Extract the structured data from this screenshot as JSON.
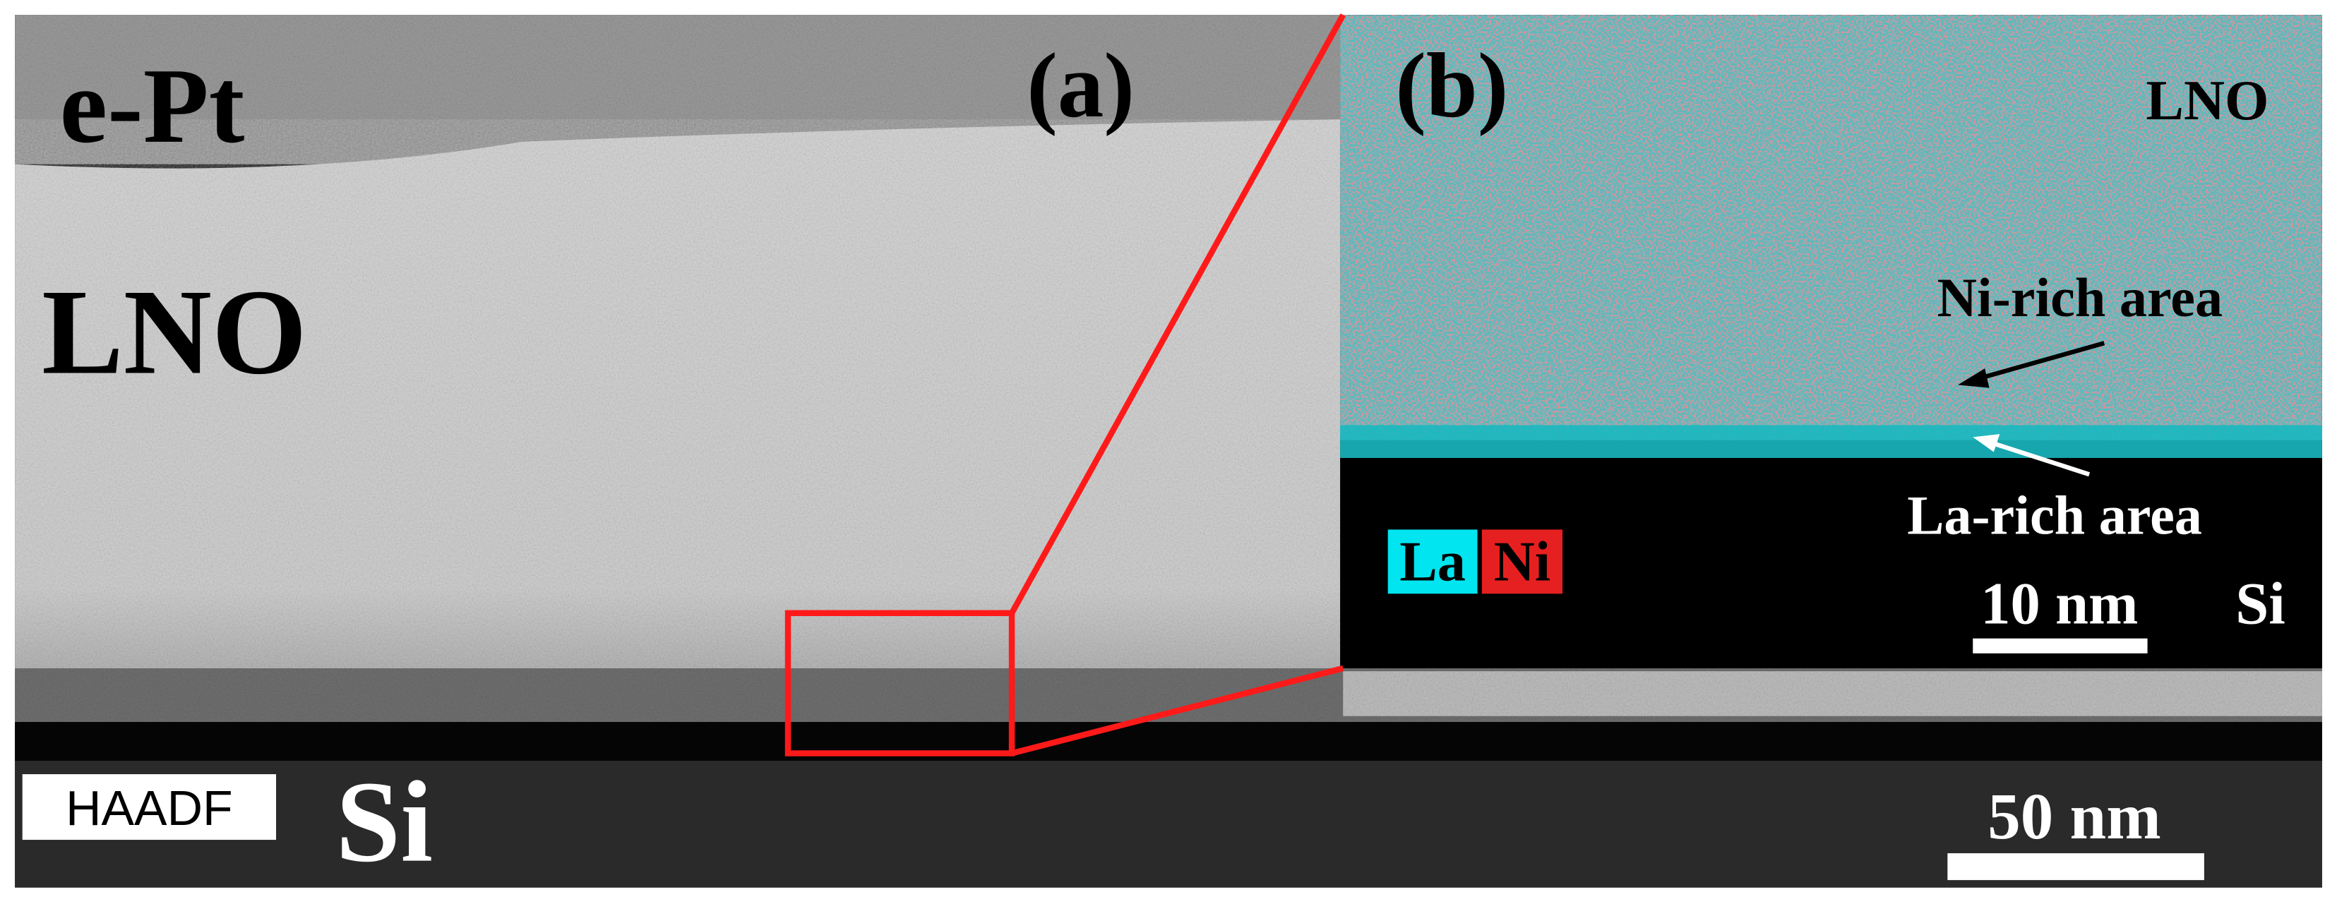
{
  "panel_a": {
    "label": "(a)",
    "layer_top": "e-Pt",
    "layer_middle": "LNO",
    "mode": "HAADF",
    "substrate": "Si",
    "scale_bar": "50 nm"
  },
  "panel_b": {
    "label": "(b)",
    "layer_top": "LNO",
    "ni_annotation": "Ni-rich area",
    "la_annotation": "La-rich area",
    "legend": [
      "La",
      "Ni"
    ],
    "scale_bar": "10 nm",
    "substrate": "Si"
  }
}
